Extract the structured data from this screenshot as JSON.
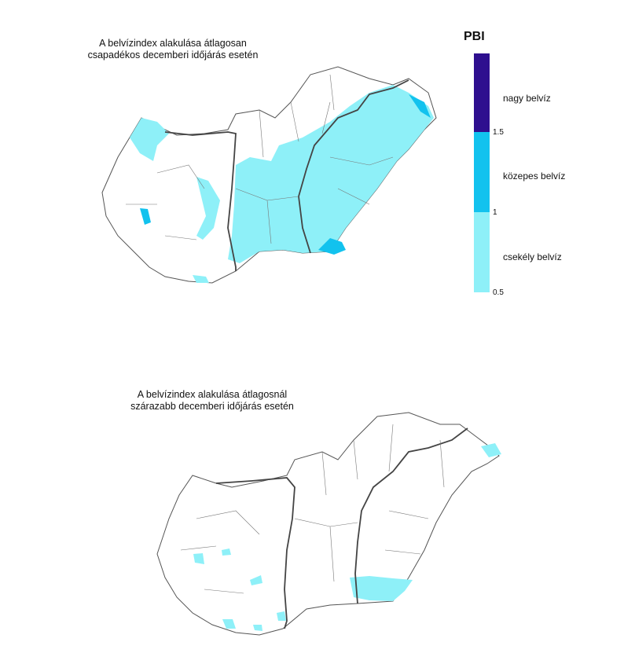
{
  "maps": [
    {
      "title_line1": "A belvízindex alakulása átlagosan",
      "title_line2": "csapadékos decemberi időjárás esetén"
    },
    {
      "title_line1": "A belvízindex alakulása átlagosnál",
      "title_line2": "szárazabb decemberi időjárás esetén"
    }
  ],
  "legend": {
    "title": "PBI",
    "classes": [
      {
        "label": "nagy belvíz",
        "color": "#2e0f8f"
      },
      {
        "label": "közepes belvíz",
        "color": "#12c2ee"
      },
      {
        "label": "csekély belvíz",
        "color": "#8ef0f8"
      }
    ],
    "ticks": [
      "1.5",
      "1",
      "0.5"
    ]
  },
  "colors": {
    "low": "#8ef0f8",
    "medium": "#12c2ee",
    "high": "#2e0f8f"
  }
}
